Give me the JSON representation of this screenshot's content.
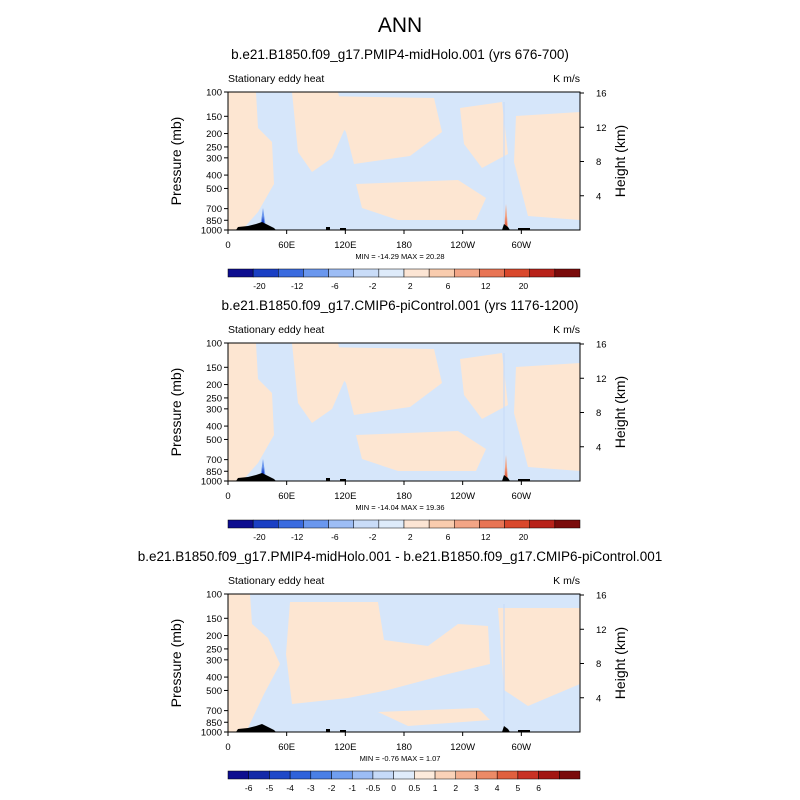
{
  "main_title": "ANN",
  "chart_data": [
    {
      "type": "heatmap",
      "title": "b.e21.B1850.f09_g17.PMIP4-midHolo.001 (yrs 676-700)",
      "field_label": "Stationary eddy heat",
      "units": "K m/s",
      "ylabel": "Pressure (mb)",
      "ylabel_right": "Height (km)",
      "x_ticks": [
        "0",
        "60E",
        "120E",
        "180",
        "120W",
        "60W"
      ],
      "y_ticks": [
        "100",
        "150",
        "200",
        "250",
        "300",
        "400",
        "500",
        "700",
        "850",
        "1000"
      ],
      "y_ticks_right": [
        "16",
        "12",
        "8",
        "4"
      ],
      "ylim": [
        1000,
        100
      ],
      "min_max": "MIN = -14.29  MAX =  20.28",
      "colorbar_labels": [
        "-20",
        "-12",
        "-6",
        "-2",
        "2",
        "6",
        "12",
        "20"
      ],
      "colorbar_colors": [
        "#0d0d8f",
        "#1a3fc4",
        "#3a6bdf",
        "#6a97ee",
        "#9dbdf5",
        "#c9dcf8",
        "#deebfa",
        "#fce5d4",
        "#f9ccae",
        "#f2a586",
        "#e87454",
        "#d9482c",
        "#b8221a",
        "#7a0b0b"
      ]
    },
    {
      "type": "heatmap",
      "title": "b.e21.B1850.f09_g17.CMIP6-piControl.001 (yrs 1176-1200)",
      "field_label": "Stationary eddy heat",
      "units": "K m/s",
      "ylabel": "Pressure (mb)",
      "ylabel_right": "Height (km)",
      "x_ticks": [
        "0",
        "60E",
        "120E",
        "180",
        "120W",
        "60W"
      ],
      "y_ticks": [
        "100",
        "150",
        "200",
        "250",
        "300",
        "400",
        "500",
        "700",
        "850",
        "1000"
      ],
      "y_ticks_right": [
        "16",
        "12",
        "8",
        "4"
      ],
      "ylim": [
        1000,
        100
      ],
      "min_max": "MIN = -14.04  MAX =  19.36",
      "colorbar_labels": [
        "-20",
        "-12",
        "-6",
        "-2",
        "2",
        "6",
        "12",
        "20"
      ],
      "colorbar_colors": [
        "#0d0d8f",
        "#1a3fc4",
        "#3a6bdf",
        "#6a97ee",
        "#9dbdf5",
        "#c9dcf8",
        "#deebfa",
        "#fce5d4",
        "#f9ccae",
        "#f2a586",
        "#e87454",
        "#d9482c",
        "#b8221a",
        "#7a0b0b"
      ]
    },
    {
      "type": "heatmap",
      "title": "b.e21.B1850.f09_g17.PMIP4-midHolo.001 - b.e21.B1850.f09_g17.CMIP6-piControl.001",
      "field_label": "Stationary eddy heat",
      "units": "K m/s",
      "ylabel": "Pressure (mb)",
      "ylabel_right": "Height (km)",
      "x_ticks": [
        "0",
        "60E",
        "120E",
        "180",
        "120W",
        "60W"
      ],
      "y_ticks": [
        "100",
        "150",
        "200",
        "250",
        "300",
        "400",
        "500",
        "700",
        "850",
        "1000"
      ],
      "y_ticks_right": [
        "16",
        "12",
        "8",
        "4"
      ],
      "ylim": [
        1000,
        100
      ],
      "min_max": "MIN = -0.76  MAX =  1.07",
      "colorbar_labels": [
        "-6",
        "-5",
        "-4",
        "-3",
        "-2",
        "-1",
        "-0.5",
        "0",
        "0.5",
        "1",
        "2",
        "3",
        "4",
        "5",
        "6"
      ],
      "colorbar_colors": [
        "#0d0d8f",
        "#142aa8",
        "#1f48c8",
        "#2f62da",
        "#4a7fe6",
        "#709ef0",
        "#9cbdf5",
        "#c6daf8",
        "#e0ecfb",
        "#fdebdc",
        "#fad2b8",
        "#f4b090",
        "#ec8a66",
        "#e0603e",
        "#c93224",
        "#a21612",
        "#7a0b0b"
      ]
    }
  ]
}
